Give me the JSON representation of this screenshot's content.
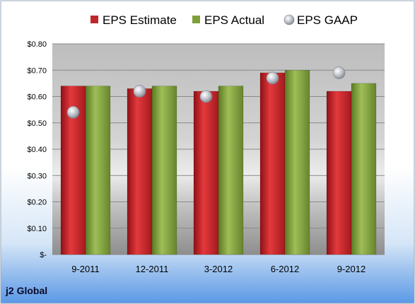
{
  "company_label": "j2 Global",
  "chart_data": {
    "type": "bar",
    "categories": [
      "9-2011",
      "12-2011",
      "3-2012",
      "6-2012",
      "9-2012"
    ],
    "series": [
      {
        "name": "EPS Estimate",
        "kind": "bar",
        "color": "#c0262a",
        "values": [
          0.64,
          0.63,
          0.62,
          0.69,
          0.62
        ]
      },
      {
        "name": "EPS Actual",
        "kind": "bar",
        "color": "#7f9f3a",
        "values": [
          0.64,
          0.64,
          0.64,
          0.7,
          0.65
        ]
      },
      {
        "name": "EPS GAAP",
        "kind": "scatter",
        "color": "#b8bcc4",
        "values": [
          0.54,
          0.62,
          0.6,
          0.67,
          0.69
        ]
      }
    ],
    "ylim": [
      0,
      0.8
    ],
    "yticks": [
      0,
      0.1,
      0.2,
      0.3,
      0.4,
      0.5,
      0.6,
      0.7,
      0.8
    ],
    "ytick_labels": [
      "$-",
      "$0.10",
      "$0.20",
      "$0.30",
      "$0.40",
      "$0.50",
      "$0.60",
      "$0.70",
      "$0.80"
    ],
    "grid": true,
    "legend_position": "top"
  }
}
